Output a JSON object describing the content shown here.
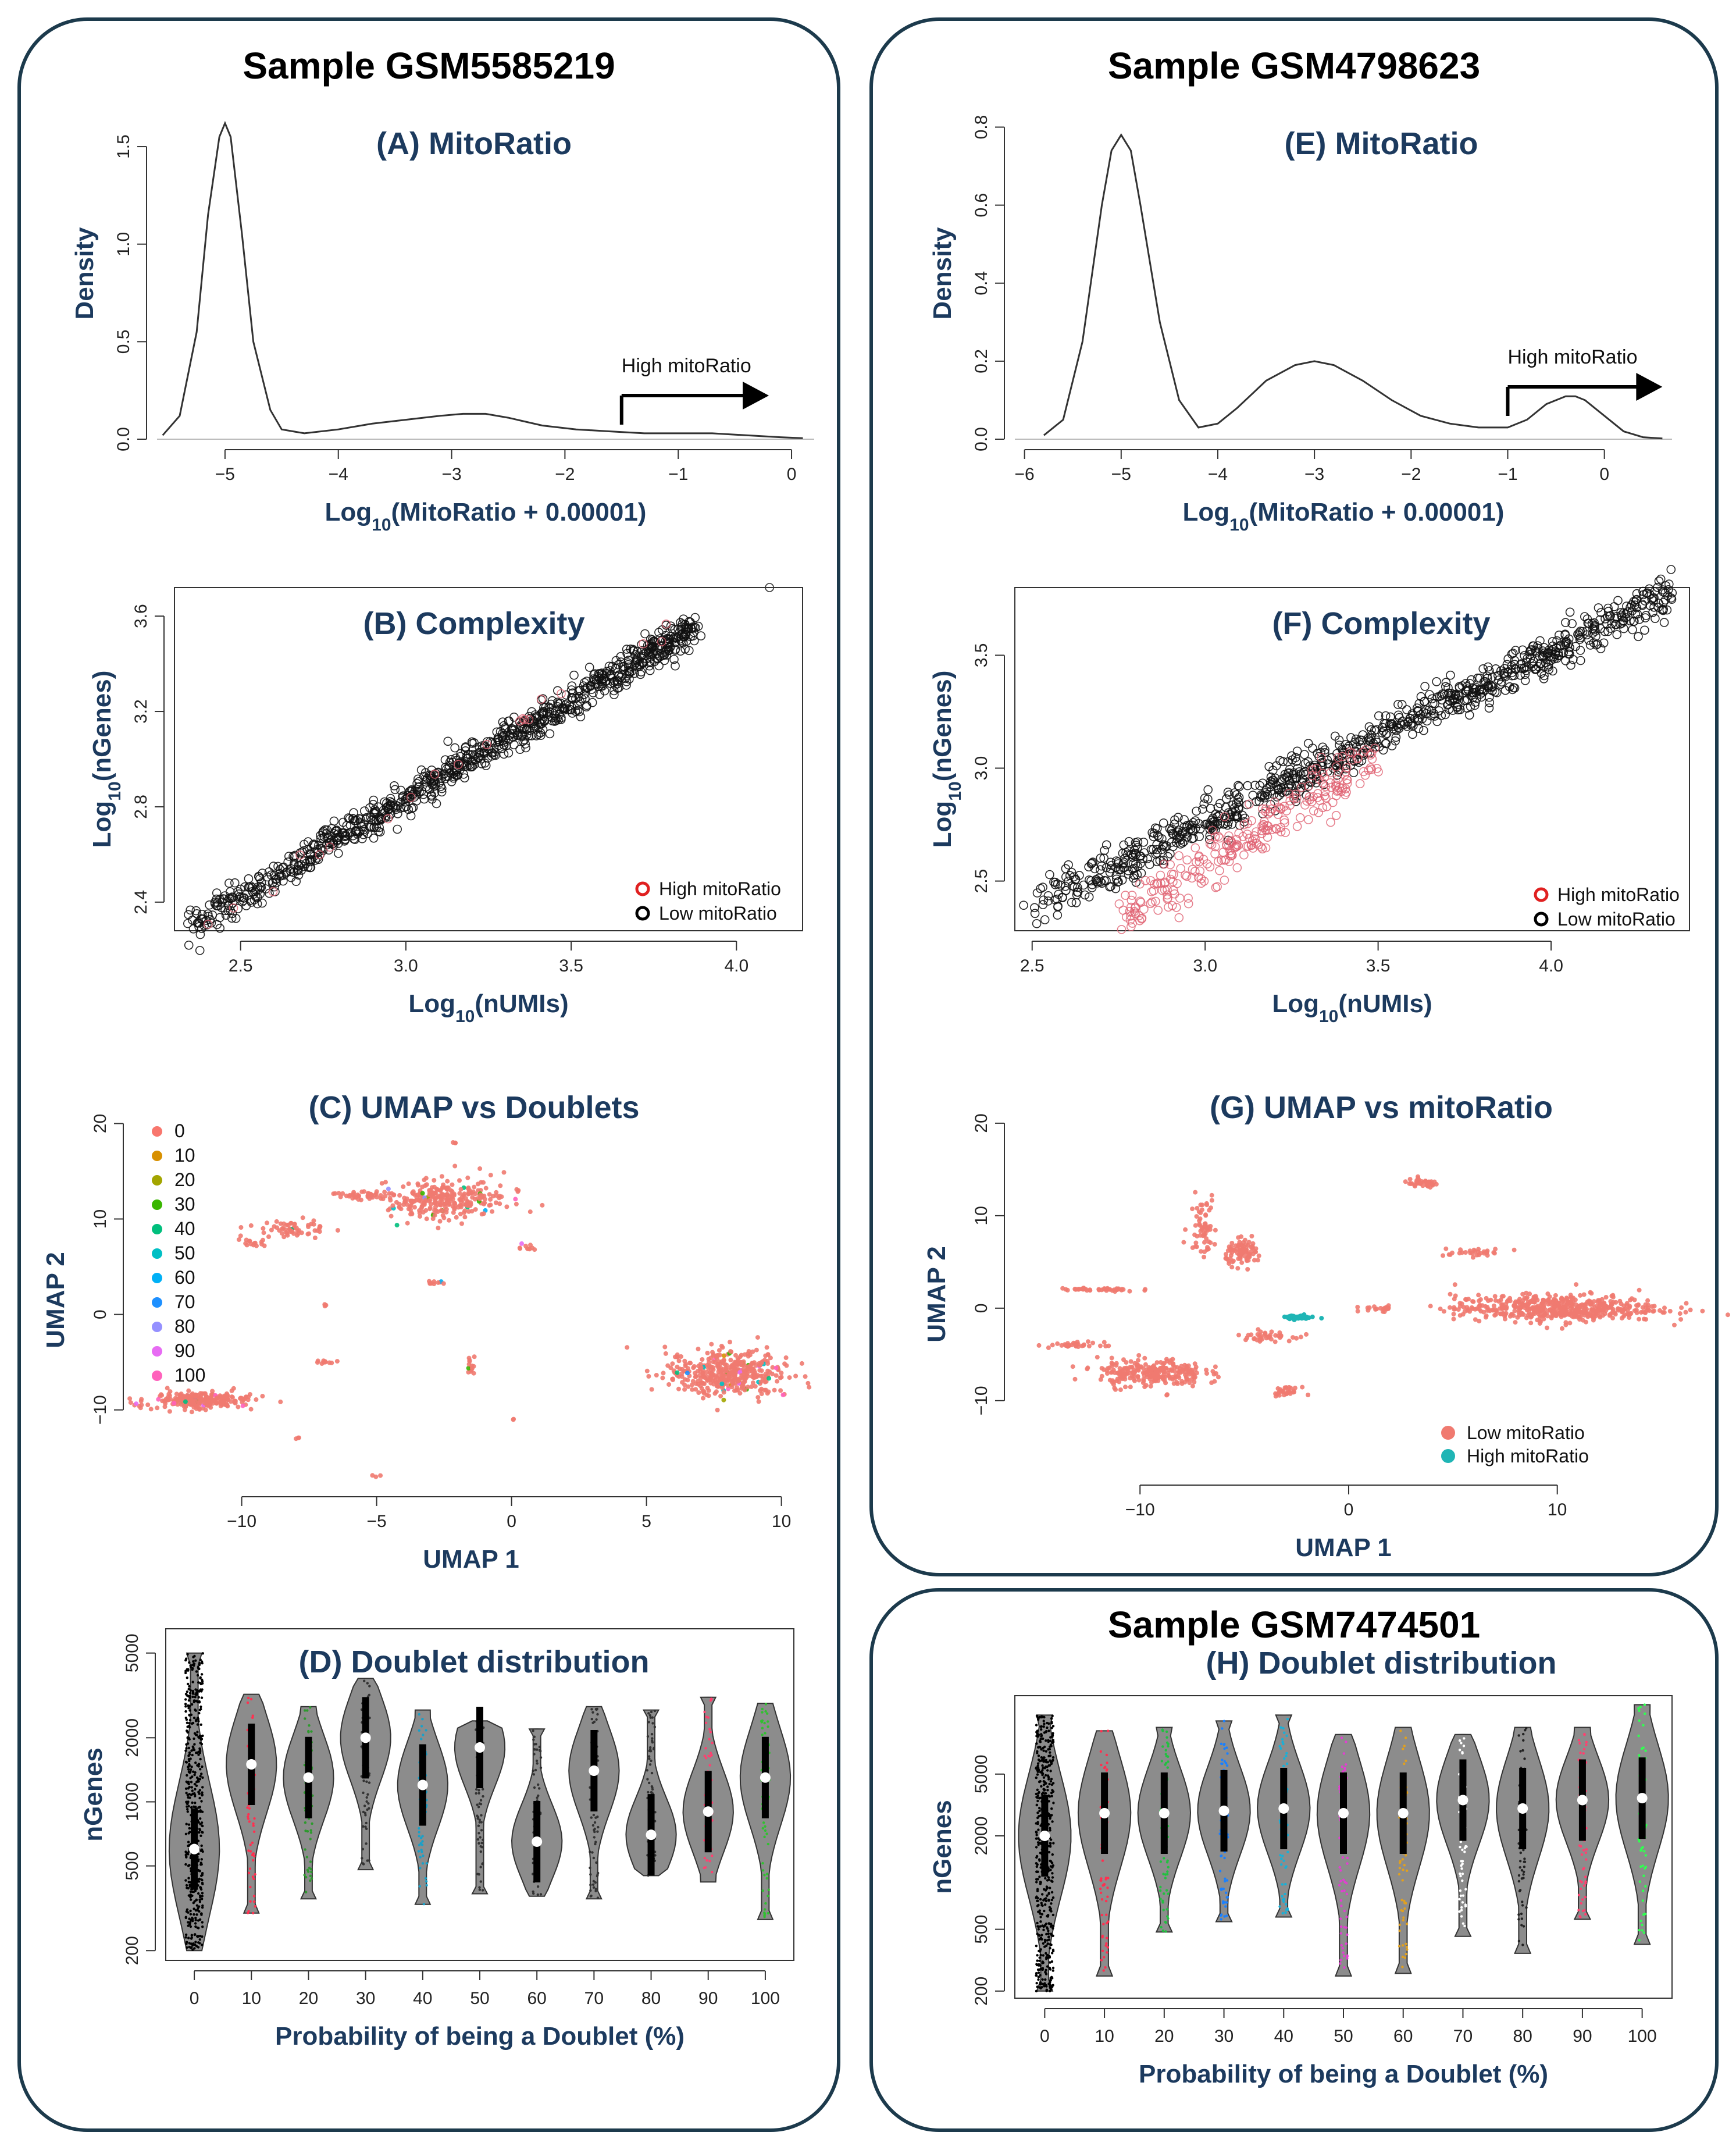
{
  "samples": [
    {
      "id": "GSM5585219",
      "title": "Sample GSM5585219"
    },
    {
      "id": "GSM4798623",
      "title": "Sample GSM4798623"
    },
    {
      "id": "GSM7474501",
      "title": "Sample GSM7474501"
    }
  ],
  "colors": {
    "border": "#1c3a4c",
    "title": "#1c3a5e",
    "violin": "#8c8c8c",
    "pink": "#f07a70",
    "teal": "#1fb5b5",
    "lowpt": "#111111",
    "highpt": "#e06070"
  },
  "chart_data": [
    {
      "id": "A",
      "type": "line",
      "title": "(A) MitoRatio",
      "xlabel": "Log10(MitoRatio + 0.00001)",
      "ylabel": "Density",
      "xlim": [
        -5.6,
        0.2
      ],
      "ylim": [
        0,
        1.7
      ],
      "xticks": [
        -5,
        -4,
        -3,
        -2,
        -1,
        0
      ],
      "xticklabels": [
        "−5",
        "−4",
        "−3",
        "−2",
        "−1",
        "0"
      ],
      "yticks": [
        0,
        0.5,
        1.0,
        1.5
      ],
      "yticklabels": [
        "0.0",
        "0.5",
        "1.0",
        "1.5"
      ],
      "x": [
        -5.55,
        -5.4,
        -5.25,
        -5.15,
        -5.05,
        -5.0,
        -4.95,
        -4.85,
        -4.75,
        -4.6,
        -4.5,
        -4.3,
        -4.0,
        -3.7,
        -3.4,
        -3.1,
        -2.9,
        -2.7,
        -2.5,
        -2.2,
        -1.9,
        -1.6,
        -1.3,
        -1.0,
        -0.7,
        -0.4,
        -0.1,
        0.1
      ],
      "y": [
        0.02,
        0.12,
        0.55,
        1.15,
        1.55,
        1.62,
        1.55,
        1.05,
        0.5,
        0.15,
        0.05,
        0.03,
        0.05,
        0.08,
        0.1,
        0.12,
        0.13,
        0.13,
        0.11,
        0.07,
        0.05,
        0.04,
        0.03,
        0.03,
        0.03,
        0.02,
        0.01,
        0.005
      ],
      "annotation": "High mitoRatio",
      "arrow_from": -1.5,
      "arrow_to": -0.2
    },
    {
      "id": "B",
      "type": "scatter",
      "title": "(B) Complexity",
      "xlabel": "Log10(nUMIs)",
      "ylabel": "Log10(nGenes)",
      "xlim": [
        2.3,
        4.2
      ],
      "ylim": [
        2.28,
        3.72
      ],
      "xticks": [
        2.5,
        3.0,
        3.5,
        4.0
      ],
      "xticklabels": [
        "2.5",
        "3.0",
        "3.5",
        "4.0"
      ],
      "yticks": [
        2.4,
        2.8,
        3.2,
        3.6
      ],
      "yticklabels": [
        "2.4",
        "2.8",
        "3.2",
        "3.6"
      ],
      "series": [
        {
          "name": "High mitoRatio",
          "trend": [
            [
              2.4,
              2.3
            ],
            [
              3.8,
              3.55
            ]
          ],
          "spread": 0.02,
          "count": 20
        },
        {
          "name": "Low mitoRatio",
          "trend": [
            [
              2.35,
              2.3
            ],
            [
              3.88,
              3.56
            ]
          ],
          "spread": 0.035,
          "count": 900
        }
      ],
      "outlier": [
        4.1,
        3.72
      ]
    },
    {
      "id": "C",
      "type": "scatter",
      "title": "(C) UMAP vs Doublets",
      "xlabel": "UMAP 1",
      "ylabel": "UMAP 2",
      "xlim": [
        -14,
        11
      ],
      "ylim": [
        -18,
        21
      ],
      "xticks": [
        -10,
        -5,
        0,
        5,
        10
      ],
      "xticklabels": [
        "−10",
        "−5",
        "0",
        "5",
        "10"
      ],
      "yticks": [
        -10,
        0,
        10,
        20
      ],
      "yticklabels": [
        "−10",
        "0",
        "10",
        "20"
      ],
      "legend": [
        "0",
        "10",
        "20",
        "30",
        "40",
        "50",
        "60",
        "70",
        "80",
        "90",
        "100"
      ],
      "legend_colors": [
        "#f8766d",
        "#d89000",
        "#a3a500",
        "#39b600",
        "#00bf7d",
        "#00bfc4",
        "#00b0f6",
        "#1e90ff",
        "#9590ff",
        "#e76bf3",
        "#ff62bc"
      ],
      "clusters": [
        [
          -11.5,
          -9,
          1.8,
          0.7,
          260
        ],
        [
          8,
          -6,
          2,
          2.2,
          420
        ],
        [
          -2.5,
          12,
          2,
          1.8,
          300
        ],
        [
          -5.5,
          12.5,
          1,
          0.4,
          40
        ],
        [
          -8,
          9,
          1.2,
          0.8,
          60
        ],
        [
          -9.5,
          7.5,
          0.6,
          0.4,
          15
        ],
        [
          -1.5,
          -5.5,
          0.15,
          0.8,
          15
        ],
        [
          -2.8,
          3.3,
          0.5,
          0.2,
          10
        ],
        [
          -7,
          -5,
          0.4,
          0.2,
          10
        ],
        [
          0.5,
          7,
          0.4,
          0.2,
          10
        ],
        [
          -7,
          1,
          0.15,
          0.15,
          3
        ],
        [
          -2,
          18,
          0.15,
          0.15,
          3
        ],
        [
          -8,
          -13,
          0.15,
          0.15,
          3
        ],
        [
          -5,
          -17,
          0.15,
          0.15,
          3
        ],
        [
          0,
          -11,
          0.1,
          0.1,
          2
        ]
      ]
    },
    {
      "id": "D",
      "type": "violin",
      "title": "(D) Doublet distribution",
      "xlabel": "Probability of being a Doublet (%)",
      "ylabel": "nGenes",
      "categories": [
        "0",
        "10",
        "20",
        "30",
        "40",
        "50",
        "60",
        "70",
        "80",
        "90",
        "100"
      ],
      "ylim": [
        180,
        6500
      ],
      "yticks": [
        200,
        500,
        1000,
        2000,
        5000
      ],
      "yticklabels": [
        "200",
        "500",
        "1000",
        "2000",
        "5000"
      ],
      "violins": [
        [
          200,
          5000,
          600
        ],
        [
          300,
          3200,
          1500
        ],
        [
          350,
          2800,
          1300
        ],
        [
          480,
          3800,
          2000
        ],
        [
          330,
          2700,
          1200
        ],
        [
          370,
          2400,
          1800
        ],
        [
          360,
          2200,
          650
        ],
        [
          350,
          2800,
          1400
        ],
        [
          450,
          2700,
          700
        ],
        [
          420,
          3100,
          900
        ],
        [
          280,
          2900,
          1300
        ]
      ]
    },
    {
      "id": "E",
      "type": "line",
      "title": "(E) MitoRatio",
      "xlabel": "Log10(MitoRatio + 0.00001)",
      "ylabel": "Density",
      "xlim": [
        -6.1,
        0.7
      ],
      "ylim": [
        0,
        0.85
      ],
      "xticks": [
        -6,
        -5,
        -4,
        -3,
        -2,
        -1,
        0
      ],
      "xticklabels": [
        "−6",
        "−5",
        "−4",
        "−3",
        "−2",
        "−1",
        "0"
      ],
      "yticks": [
        0,
        0.2,
        0.4,
        0.6,
        0.8
      ],
      "yticklabels": [
        "0.0",
        "0.2",
        "0.4",
        "0.6",
        "0.8"
      ],
      "x": [
        -5.8,
        -5.6,
        -5.4,
        -5.2,
        -5.1,
        -5.0,
        -4.9,
        -4.8,
        -4.6,
        -4.4,
        -4.2,
        -4.0,
        -3.8,
        -3.5,
        -3.2,
        -3.0,
        -2.8,
        -2.5,
        -2.2,
        -1.9,
        -1.6,
        -1.3,
        -1.0,
        -0.8,
        -0.6,
        -0.4,
        -0.3,
        -0.2,
        0,
        0.2,
        0.4,
        0.6
      ],
      "y": [
        0.01,
        0.05,
        0.25,
        0.6,
        0.74,
        0.78,
        0.74,
        0.6,
        0.3,
        0.1,
        0.03,
        0.04,
        0.08,
        0.15,
        0.19,
        0.2,
        0.19,
        0.15,
        0.1,
        0.06,
        0.04,
        0.03,
        0.03,
        0.05,
        0.09,
        0.11,
        0.11,
        0.1,
        0.06,
        0.02,
        0.005,
        0.002
      ],
      "annotation": "High mitoRatio",
      "arrow_from": -1.0,
      "arrow_to": 0.6
    },
    {
      "id": "F",
      "type": "scatter",
      "title": "(F) Complexity",
      "xlabel": "Log10(nUMIs)",
      "ylabel": "Log10(nGenes)",
      "xlim": [
        2.45,
        4.4
      ],
      "ylim": [
        2.28,
        3.8
      ],
      "xticks": [
        2.5,
        3.0,
        3.5,
        4.0
      ],
      "xticklabels": [
        "2.5",
        "3.0",
        "3.5",
        "4.0"
      ],
      "yticks": [
        2.5,
        3.0,
        3.5
      ],
      "yticklabels": [
        "2.5",
        "3.0",
        "3.5"
      ],
      "series": [
        {
          "name": "High mitoRatio",
          "trend": [
            [
              2.75,
              2.33
            ],
            [
              3.5,
              3.05
            ]
          ],
          "spread": 0.06,
          "count": 260
        },
        {
          "name": "Low mitoRatio",
          "trend": [
            [
              2.5,
              2.38
            ],
            [
              4.35,
              3.78
            ]
          ],
          "spread": 0.045,
          "count": 900
        }
      ]
    },
    {
      "id": "G",
      "type": "scatter",
      "title": "(G) UMAP vs mitoRatio",
      "xlabel": "UMAP 1",
      "ylabel": "UMAP 2",
      "xlim": [
        -16,
        15.5
      ],
      "ylim": [
        -18,
        21
      ],
      "xticks": [
        -10,
        0,
        10
      ],
      "xticklabels": [
        "−10",
        "0",
        "10"
      ],
      "yticks": [
        -10,
        0,
        10,
        20
      ],
      "yticklabels": [
        "−10",
        "0",
        "10",
        "20"
      ],
      "legend": [
        "Low mitoRatio",
        "High mitoRatio"
      ],
      "clusters": [
        [
          10,
          0,
          4.5,
          1.3,
          520
        ],
        [
          -9.5,
          -7,
          2.3,
          1.4,
          260
        ],
        [
          -5,
          6,
          0.8,
          1.2,
          90
        ],
        [
          3.5,
          13.5,
          0.8,
          0.4,
          40
        ],
        [
          -12,
          2,
          1.8,
          0.2,
          40
        ],
        [
          -7,
          9,
          0.6,
          3,
          60
        ],
        [
          -4,
          -3,
          1.2,
          0.5,
          40
        ],
        [
          -3,
          -9,
          0.6,
          0.4,
          30
        ],
        [
          -13,
          -4,
          1.2,
          0.3,
          30
        ],
        [
          6,
          6,
          1.5,
          0.4,
          30
        ],
        [
          1.5,
          0,
          0.8,
          0.3,
          20
        ]
      ],
      "high_cluster": [
        -2.5,
        -1,
        0.8,
        0.2,
        45
      ]
    },
    {
      "id": "H",
      "type": "violin",
      "title": "(H) Doublet distribution",
      "xlabel": "Probability of being a Doublet (%)",
      "ylabel": "nGenes",
      "categories": [
        "0",
        "10",
        "20",
        "30",
        "40",
        "50",
        "60",
        "70",
        "80",
        "90",
        "100"
      ],
      "ylim": [
        180,
        16000
      ],
      "yticks": [
        200,
        500,
        2000,
        5000
      ],
      "yticklabels": [
        "200",
        "500",
        "2000",
        "5000"
      ],
      "violins": [
        [
          200,
          12000,
          2000
        ],
        [
          250,
          9500,
          2800
        ],
        [
          480,
          10000,
          2800
        ],
        [
          560,
          11000,
          2900
        ],
        [
          600,
          12000,
          3000
        ],
        [
          250,
          9000,
          2800
        ],
        [
          260,
          10000,
          2800
        ],
        [
          450,
          9000,
          3400
        ],
        [
          350,
          10000,
          3000
        ],
        [
          580,
          10000,
          3400
        ],
        [
          400,
          14000,
          3500
        ]
      ]
    }
  ]
}
